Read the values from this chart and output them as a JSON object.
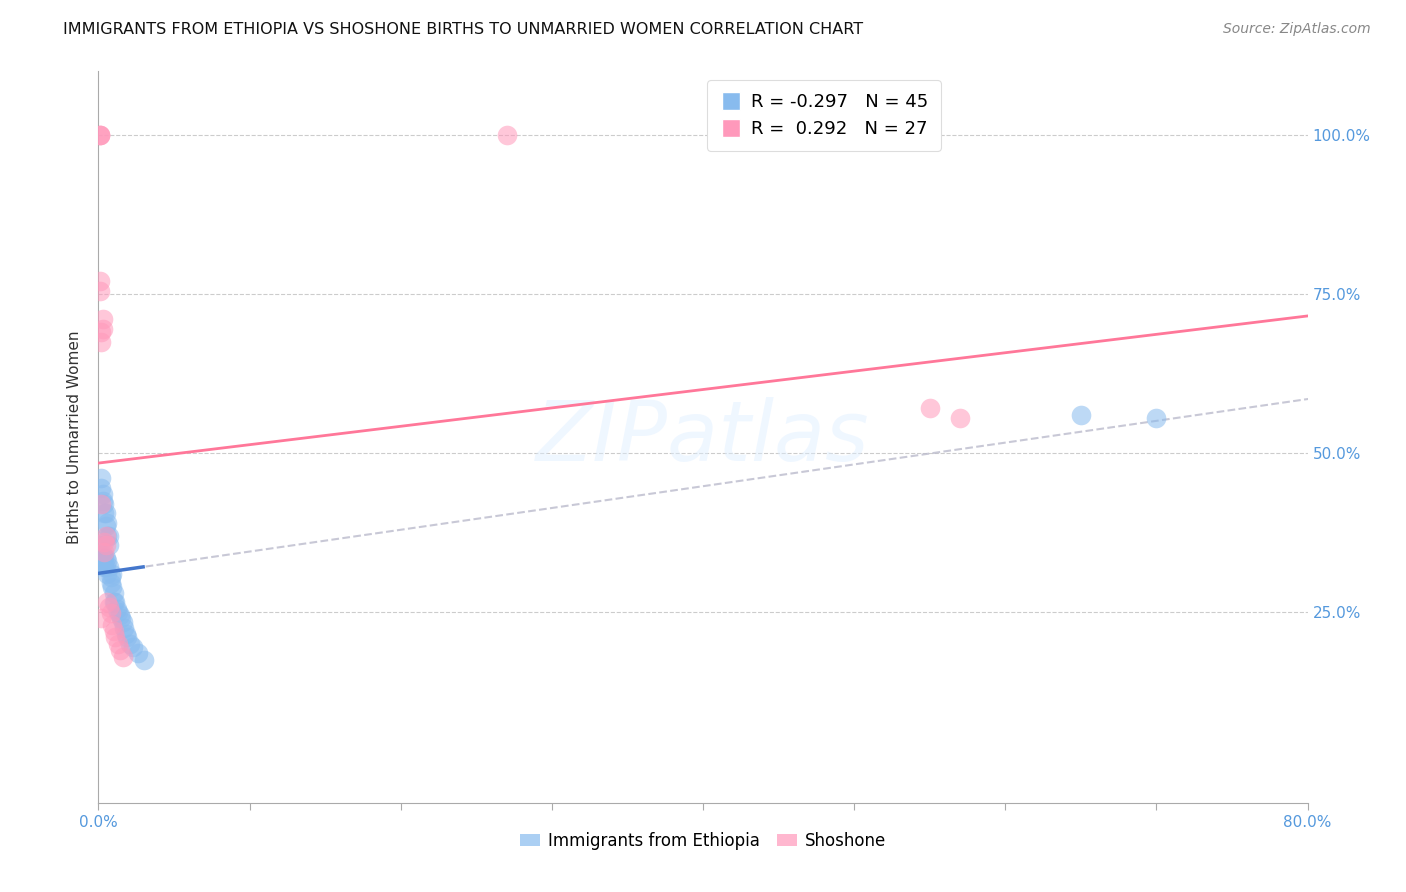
{
  "title": "IMMIGRANTS FROM ETHIOPIA VS SHOSHONE BIRTHS TO UNMARRIED WOMEN CORRELATION CHART",
  "source": "Source: ZipAtlas.com",
  "ylabel": "Births to Unmarried Women",
  "legend_label1": "Immigrants from Ethiopia",
  "legend_label2": "Shoshone",
  "r1": -0.297,
  "n1": 45,
  "r2": 0.292,
  "n2": 27,
  "color_blue": "#88BBEE",
  "color_pink": "#FF99BB",
  "color_blue_line": "#4477CC",
  "color_pink_line": "#FF7799",
  "color_dashed": "#BBBBCC",
  "xlim": [
    0.0,
    0.8
  ],
  "ylim": [
    -0.05,
    1.1
  ],
  "blue_x": [
    0.001,
    0.001,
    0.002,
    0.002,
    0.002,
    0.003,
    0.003,
    0.003,
    0.003,
    0.004,
    0.004,
    0.004,
    0.004,
    0.005,
    0.005,
    0.005,
    0.005,
    0.006,
    0.006,
    0.006,
    0.006,
    0.007,
    0.007,
    0.007,
    0.008,
    0.008,
    0.009,
    0.009,
    0.01,
    0.01,
    0.011,
    0.012,
    0.013,
    0.014,
    0.015,
    0.016,
    0.017,
    0.018,
    0.019,
    0.021,
    0.023,
    0.026,
    0.03,
    0.65,
    0.7
  ],
  "blue_y": [
    0.355,
    0.34,
    0.46,
    0.445,
    0.33,
    0.435,
    0.425,
    0.34,
    0.325,
    0.42,
    0.405,
    0.335,
    0.32,
    0.405,
    0.385,
    0.335,
    0.32,
    0.39,
    0.37,
    0.33,
    0.31,
    0.37,
    0.355,
    0.32,
    0.305,
    0.295,
    0.31,
    0.29,
    0.28,
    0.265,
    0.265,
    0.255,
    0.25,
    0.245,
    0.24,
    0.235,
    0.225,
    0.215,
    0.21,
    0.2,
    0.195,
    0.185,
    0.175,
    0.56,
    0.555
  ],
  "pink_x": [
    0.001,
    0.001,
    0.001,
    0.001,
    0.001,
    0.002,
    0.002,
    0.002,
    0.002,
    0.003,
    0.003,
    0.004,
    0.004,
    0.005,
    0.005,
    0.006,
    0.007,
    0.008,
    0.009,
    0.01,
    0.011,
    0.013,
    0.014,
    0.016,
    0.55,
    0.57
  ],
  "pink_y": [
    1.0,
    1.0,
    1.0,
    0.77,
    0.755,
    0.69,
    0.675,
    0.42,
    0.24,
    0.71,
    0.695,
    0.36,
    0.345,
    0.37,
    0.355,
    0.265,
    0.258,
    0.248,
    0.23,
    0.22,
    0.21,
    0.2,
    0.19,
    0.18,
    0.57,
    0.555
  ],
  "pink_extra_x": [
    0.27
  ],
  "pink_extra_y": [
    1.0
  ]
}
